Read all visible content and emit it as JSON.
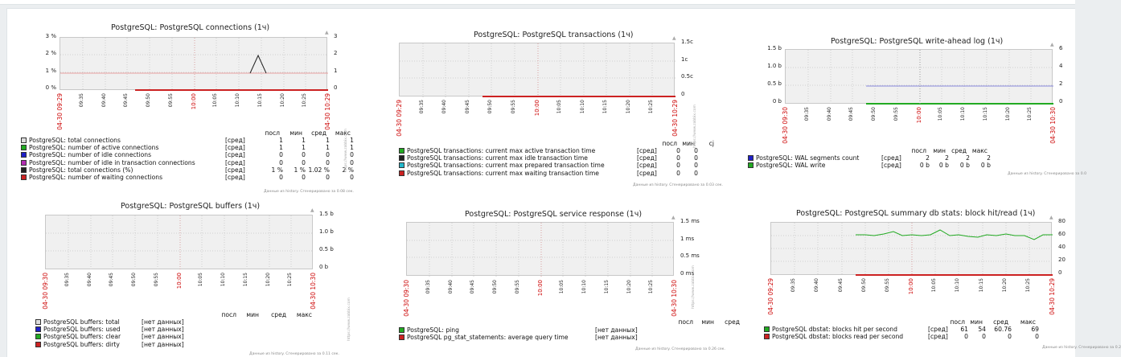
{
  "graphs": {
    "connections": {
      "title": "PostgreSQL: PostgreSQL connections (1ч)",
      "y_left": [
        "3 %",
        "2 %",
        "1 %",
        "0 %"
      ],
      "y_right": [
        "3",
        "2",
        "1",
        "0"
      ],
      "x_start": "04-30 09:29",
      "x_end": "04-30 10:29",
      "x_ticks": [
        "09:35",
        "09:40",
        "09:45",
        "09:50",
        "09:55",
        "10:00",
        "10:05",
        "10:10",
        "10:15",
        "10:20",
        "10:25"
      ],
      "headers": [
        "посл",
        "мин",
        "сред",
        "макс"
      ],
      "rows": [
        {
          "name": "PostgreSQL: total connections",
          "func": "[сред]",
          "vals": [
            "1",
            "1",
            "1",
            "1"
          ],
          "color": "#dddddd"
        },
        {
          "name": "PostgreSQL: number of active connections",
          "func": "[сред]",
          "vals": [
            "1",
            "1",
            "1",
            "1"
          ],
          "color": "#22aa22"
        },
        {
          "name": "PostgreSQL: number of idle connections",
          "func": "[сред]",
          "vals": [
            "0",
            "0",
            "0",
            "0"
          ],
          "color": "#1f1fc8"
        },
        {
          "name": "PostgreSQL: number of idle in transaction connections",
          "func": "[сред]",
          "vals": [
            "0",
            "0",
            "0",
            "0"
          ],
          "color": "#b22cb2"
        },
        {
          "name": "PostgreSQL: total connections (%)",
          "func": "[сред]",
          "vals": [
            "1 %",
            "1 %",
            "1.02 %",
            "2 %"
          ],
          "color": "#222222"
        },
        {
          "name": "PostgreSQL: number of waiting connections",
          "func": "[сред]",
          "vals": [
            "0",
            "0",
            "0",
            "0"
          ],
          "color": "#cc2222"
        }
      ],
      "footnote": "Данные из history. Сгенерировано за 0.08 сек."
    },
    "transactions": {
      "title": "PostgreSQL: PostgreSQL transactions (1ч)",
      "y_right": [
        "1.5c",
        "1c",
        "0.5c",
        "0"
      ],
      "x_start": "04-30 09:29",
      "x_end": "04-30 10:29",
      "x_ticks": [
        "09:35",
        "09:40",
        "09:45",
        "09:50",
        "09:55",
        "10:00",
        "10:05",
        "10:10",
        "10:15",
        "10:20",
        "10:25"
      ],
      "headers": [
        "посл",
        "мин",
        "сј"
      ],
      "rows": [
        {
          "name": "PostgreSQL transactions: current max active transaction time",
          "func": "[сред]",
          "vals": [
            "0",
            "0"
          ],
          "color": "#22aa22"
        },
        {
          "name": "PostgreSQL transactions: current max idle transaction time",
          "func": "[сред]",
          "vals": [
            "0",
            "0"
          ],
          "color": "#222222"
        },
        {
          "name": "PostgreSQL transactions: current max prepared transaction time",
          "func": "[сред]",
          "vals": [
            "0",
            "0"
          ],
          "color": "#22b8cc"
        },
        {
          "name": "PostgreSQL transactions: current max waiting transaction time",
          "func": "[сред]",
          "vals": [
            "0",
            "0"
          ],
          "color": "#cc2222"
        }
      ],
      "footnote": "Данные из history. Сгенерировано за 0.03 сек."
    },
    "wal": {
      "title": "PostgreSQL: PostgreSQL write-ahead log (1ч)",
      "y_left": [
        "1.5 b",
        "1.0 b",
        "0.5 b",
        "0 b"
      ],
      "y_right": [
        "6",
        "4",
        "2",
        "0"
      ],
      "x_start": "04-30 09:30",
      "x_end": "04-30 10:30",
      "x_ticks": [
        "09:35",
        "09:40",
        "09:45",
        "09:50",
        "09:55",
        "10:00",
        "10:05",
        "10:10",
        "10:15",
        "10:20",
        "10:25"
      ],
      "headers": [
        "посл",
        "мин",
        "сред",
        "макс"
      ],
      "rows": [
        {
          "name": "PostgreSQL: WAL segments count",
          "func": "[сред]",
          "vals": [
            "2",
            "2",
            "2",
            "2"
          ],
          "color": "#1f1fc8"
        },
        {
          "name": "PostgreSQL: WAL write",
          "func": "[сред]",
          "vals": [
            "0 b",
            "0 b",
            "0 b",
            "0 b"
          ],
          "color": "#22aa22"
        }
      ],
      "footnote": "Данные из history. Сгенерировано за 0.0"
    },
    "buffers": {
      "title": "PostgreSQL: PostgreSQL buffers (1ч)",
      "y_right": [
        "1.5 b",
        "1.0 b",
        "0.5 b",
        "0 b"
      ],
      "x_start": "04-30 09:30",
      "x_end": "04-30 10:30",
      "x_ticks": [
        "09:35",
        "09:40",
        "09:45",
        "09:50",
        "09:55",
        "10:00",
        "10:05",
        "10:10",
        "10:15",
        "10:20",
        "10:25"
      ],
      "headers": [
        "посл",
        "мин",
        "сред",
        "макс"
      ],
      "rows": [
        {
          "name": "PostgreSQL buffers: total",
          "func": "[нет данных]",
          "vals": [],
          "color": "#dddddd"
        },
        {
          "name": "PostgreSQL buffers: used",
          "func": "[нет данных]",
          "vals": [],
          "color": "#1f1fc8"
        },
        {
          "name": "PostgreSQL buffers: clear",
          "func": "[нет данных]",
          "vals": [],
          "color": "#22aa22"
        },
        {
          "name": "PostgreSQL buffers: dirty",
          "func": "[нет данных]",
          "vals": [],
          "color": "#cc2222"
        }
      ],
      "footnote": "Данные из history. Сгенерировано за 0.11 сек."
    },
    "service": {
      "title": "PostgreSQL: PostgreSQL service response (1ч)",
      "y_right": [
        "1.5 ms",
        "1 ms",
        "0.5 ms",
        "0 ms"
      ],
      "x_start": "04-30 09:30",
      "x_end": "04-30 10:30",
      "x_ticks": [
        "09:35",
        "09:40",
        "09:45",
        "09:50",
        "09:55",
        "10:00",
        "10:05",
        "10:10",
        "10:15",
        "10:20",
        "10:25"
      ],
      "headers": [
        "посл",
        "мин",
        "сред"
      ],
      "rows": [
        {
          "name": "PostgreSQL: ping",
          "func": "[нет данных]",
          "vals": [],
          "color": "#22aa22"
        },
        {
          "name": "PostgreSQL pg_stat_statements: average query time",
          "func": "[нет данных]",
          "vals": [],
          "color": "#cc2222"
        }
      ],
      "footnote": "Данные из history. Сгенерировано за 0.26 сек."
    },
    "dbstats": {
      "title": "PostgreSQL: PostgreSQL summary db stats: block hit/read (1ч)",
      "y_right": [
        "80",
        "60",
        "40",
        "20",
        "0"
      ],
      "x_start": "04-30 09:29",
      "x_end": "04-30 10:29",
      "x_ticks": [
        "09:35",
        "09:40",
        "09:45",
        "09:50",
        "09:55",
        "10:00",
        "10:05",
        "10:10",
        "10:15",
        "10:20",
        "10:25"
      ],
      "headers": [
        "посл",
        "мин",
        "сред",
        "макс"
      ],
      "rows": [
        {
          "name": "PostgreSQL dbstat: blocks hit per second",
          "func": "[сред]",
          "vals": [
            "61",
            "54",
            "60.76",
            "69"
          ],
          "color": "#22aa22"
        },
        {
          "name": "PostgreSQL dbstat: blocks read per second",
          "func": "[сред]",
          "vals": [
            "0",
            "0",
            "0",
            "0"
          ],
          "color": "#cc2222"
        }
      ],
      "footnote": "Данные из history. Сгенерировано за 0.2"
    }
  },
  "side_mark": "https://www.zabbix.com"
}
